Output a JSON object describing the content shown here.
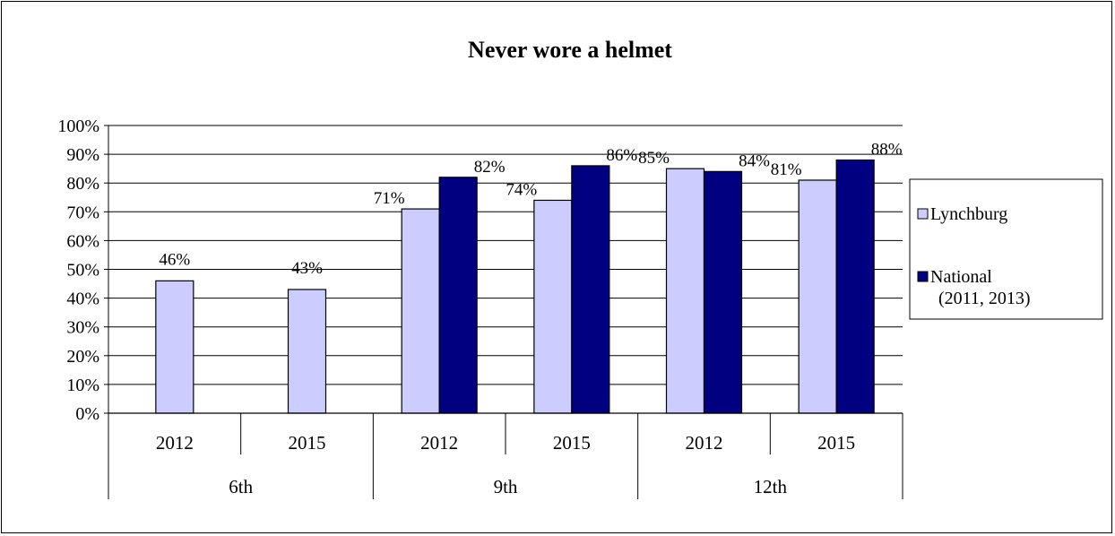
{
  "chart_data": {
    "type": "bar",
    "title": "Never wore a helmet",
    "xlabel": "",
    "ylabel": "",
    "ylim": [
      0,
      100
    ],
    "yticks": [
      "0%",
      "10%",
      "20%",
      "30%",
      "40%",
      "50%",
      "60%",
      "70%",
      "80%",
      "90%",
      "100%"
    ],
    "grid": true,
    "legend_position": "right",
    "groups": [
      {
        "label": "6th",
        "categories": [
          "2012",
          "2015"
        ]
      },
      {
        "label": "9th",
        "categories": [
          "2012",
          "2015"
        ]
      },
      {
        "label": "12th",
        "categories": [
          "2012",
          "2015"
        ]
      }
    ],
    "categories": [
      "2012",
      "2015",
      "2012",
      "2015",
      "2012",
      "2015"
    ],
    "series": [
      {
        "name": "Lynchburg",
        "color": "#ccccff",
        "values": [
          46,
          43,
          71,
          74,
          85,
          81
        ],
        "labels": [
          "46%",
          "43%",
          "71%",
          "74%",
          "85%",
          "81%"
        ]
      },
      {
        "name": "National\n(2011, 2013)",
        "legend_lines": [
          "National",
          "(2011, 2013)"
        ],
        "color": "#000080",
        "values": [
          null,
          null,
          82,
          86,
          84,
          88
        ],
        "labels": [
          null,
          null,
          "82%",
          "86%",
          "84%",
          "88%"
        ]
      }
    ]
  }
}
